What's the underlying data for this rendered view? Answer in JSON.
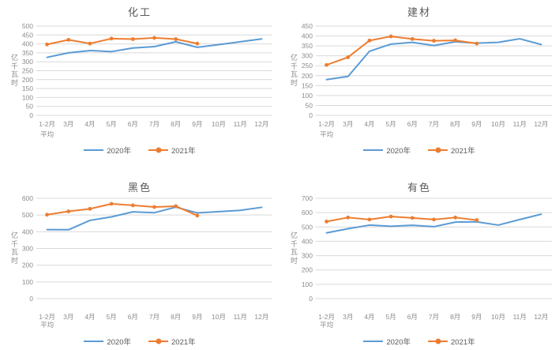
{
  "figure": {
    "background": "#ffffff"
  },
  "colors": {
    "title_text": "#595959",
    "axis_text": "#8c8c8c",
    "legend_text": "#595959",
    "gridline": "#d9d9d9",
    "series_2020": "#5B9BD5",
    "series_2021": "#ED7D31"
  },
  "categories_wrap": [
    [
      "1-2月",
      "平均"
    ],
    [
      "3月"
    ],
    [
      "4月"
    ],
    [
      "5月"
    ],
    [
      "6月"
    ],
    [
      "7月"
    ],
    [
      "8月"
    ],
    [
      "9月"
    ],
    [
      "10月"
    ],
    [
      "11月"
    ],
    [
      "12月"
    ]
  ],
  "chart_data": [
    {
      "type": "line",
      "title": "化工",
      "ylabel": "亿千瓦时",
      "xlabel": "",
      "categories": [
        "1-2月平均",
        "3月",
        "4月",
        "5月",
        "6月",
        "7月",
        "8月",
        "9月",
        "10月",
        "11月",
        "12月"
      ],
      "ylim": [
        0,
        500
      ],
      "ystep": 50,
      "grid": true,
      "legend_position": "bottom",
      "series": [
        {
          "key": "2020",
          "name": "2020年",
          "color": "#5B9BD5",
          "marker": "none",
          "values": [
            325,
            350,
            363,
            357,
            377,
            385,
            412,
            381,
            396,
            412,
            428
          ]
        },
        {
          "key": "2021",
          "name": "2021年",
          "color": "#ED7D31",
          "marker": "circle",
          "values": [
            397,
            423,
            402,
            430,
            427,
            434,
            427,
            402
          ]
        }
      ]
    },
    {
      "type": "line",
      "title": "建材",
      "ylabel": "亿千瓦时",
      "xlabel": "",
      "categories": [
        "1-2月平均",
        "3月",
        "4月",
        "5月",
        "6月",
        "7月",
        "8月",
        "9月",
        "10月",
        "11月",
        "12月"
      ],
      "ylim": [
        0,
        450
      ],
      "ystep": 50,
      "grid": true,
      "legend_position": "bottom",
      "series": [
        {
          "key": "2020",
          "name": "2020年",
          "color": "#5B9BD5",
          "marker": "none",
          "values": [
            180,
            196,
            323,
            359,
            368,
            352,
            371,
            364,
            368,
            386,
            357
          ]
        },
        {
          "key": "2021",
          "name": "2021年",
          "color": "#ED7D31",
          "marker": "circle",
          "values": [
            254,
            293,
            377,
            398,
            385,
            376,
            378,
            362
          ]
        }
      ]
    },
    {
      "type": "line",
      "title": "黑色",
      "ylabel": "亿千瓦时",
      "xlabel": "",
      "categories": [
        "1-2月平均",
        "3月",
        "4月",
        "5月",
        "6月",
        "7月",
        "8月",
        "9月",
        "10月",
        "11月",
        "12月"
      ],
      "ylim": [
        0,
        600
      ],
      "ystep": 100,
      "grid": true,
      "legend_position": "bottom",
      "series": [
        {
          "key": "2020",
          "name": "2020年",
          "color": "#5B9BD5",
          "marker": "none",
          "values": [
            413,
            412,
            468,
            489,
            519,
            514,
            547,
            513,
            520,
            528,
            546
          ]
        },
        {
          "key": "2021",
          "name": "2021年",
          "color": "#ED7D31",
          "marker": "circle",
          "values": [
            502,
            522,
            537,
            567,
            558,
            548,
            553,
            497
          ]
        }
      ]
    },
    {
      "type": "line",
      "title": "有色",
      "ylabel": "亿千瓦时",
      "xlabel": "",
      "categories": [
        "1-2月平均",
        "3月",
        "4月",
        "5月",
        "6月",
        "7月",
        "8月",
        "9月",
        "10月",
        "11月",
        "12月"
      ],
      "ylim": [
        0,
        700
      ],
      "ystep": 100,
      "grid": true,
      "legend_position": "bottom",
      "series": [
        {
          "key": "2020",
          "name": "2020年",
          "color": "#5B9BD5",
          "marker": "none",
          "values": [
            459,
            488,
            513,
            505,
            512,
            502,
            534,
            536,
            513,
            552,
            589
          ]
        },
        {
          "key": "2021",
          "name": "2021年",
          "color": "#ED7D31",
          "marker": "circle",
          "values": [
            538,
            566,
            552,
            573,
            563,
            552,
            566,
            548
          ]
        }
      ]
    }
  ]
}
